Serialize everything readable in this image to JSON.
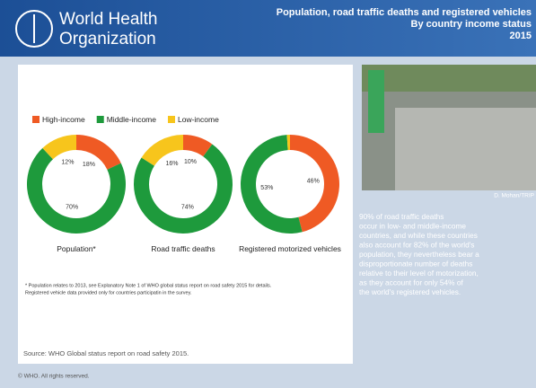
{
  "header": {
    "org": [
      "World Health",
      "Organization"
    ],
    "title": [
      "Population, road traffic deaths and registered vehicles",
      "By country income status",
      "2015"
    ]
  },
  "chart_data": [
    {
      "type": "pie",
      "donut": true,
      "title": "Population*",
      "categories": [
        "High-income",
        "Middle-income",
        "Low-income"
      ],
      "colors": [
        "#ef5a24",
        "#1e9a3c",
        "#f7c51c"
      ],
      "values": [
        18,
        70,
        12
      ],
      "value_labels": [
        "18%",
        "70%",
        "12%"
      ]
    },
    {
      "type": "pie",
      "donut": true,
      "title": "Road traffic deaths",
      "categories": [
        "High-income",
        "Middle-income",
        "Low-income"
      ],
      "colors": [
        "#ef5a24",
        "#1e9a3c",
        "#f7c51c"
      ],
      "values": [
        10,
        74,
        16
      ],
      "value_labels": [
        "10%",
        "74%",
        "16%"
      ]
    },
    {
      "type": "pie",
      "donut": true,
      "title": "Registered motorized vehicles",
      "categories": [
        "High-income",
        "Middle-income",
        "Low-income"
      ],
      "colors": [
        "#ef5a24",
        "#1e9a3c",
        "#f7c51c"
      ],
      "values": [
        46,
        53,
        1
      ],
      "value_labels": [
        "46%",
        "53%",
        null
      ]
    }
  ],
  "footnote": [
    "* Population relates to 2013, see Explanatory Note 1 of WHO global status report on road safety 2015 for details.",
    "Registered vehicle data provided only for countries participatin in the survey."
  ],
  "source": "Source: WHO Global status report on road safety 2015.",
  "photo_credit": "D. Mohan/TRIP",
  "body": [
    "90% of road traffic deaths",
    "occur in low- and middle-income",
    "countries, and while these countries",
    "also account for 82% of the world's",
    "population, they nevertheless bear a",
    "disproportionate number of deaths",
    "relative to their level of motorization,",
    "as they account for only 54% of",
    "the world's registered vehicles."
  ],
  "copyright": "© WHO. All rights reserved."
}
